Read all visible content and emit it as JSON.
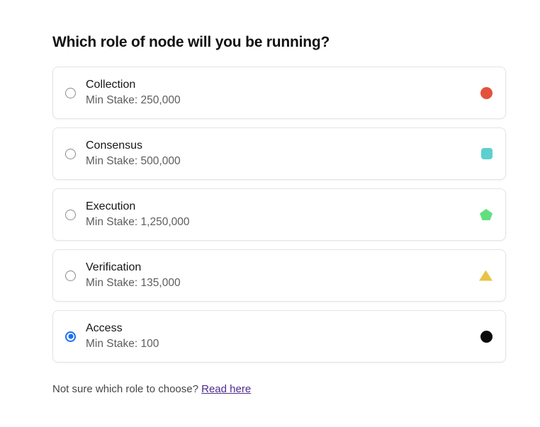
{
  "page": {
    "title": "Which role of node will you be running?"
  },
  "options": [
    {
      "name": "Collection",
      "min_stake_label": "Min Stake: 250,000",
      "icon": "circle",
      "icon_color": "#e4523d",
      "selected": false
    },
    {
      "name": "Consensus",
      "min_stake_label": "Min Stake: 500,000",
      "icon": "rounded-square",
      "icon_color": "#5dcfcf",
      "selected": false
    },
    {
      "name": "Execution",
      "min_stake_label": "Min Stake: 1,250,000",
      "icon": "pentagon",
      "icon_color": "#61df80",
      "selected": false
    },
    {
      "name": "Verification",
      "min_stake_label": "Min Stake: 135,000",
      "icon": "triangle",
      "icon_color": "#e6c545",
      "selected": false
    },
    {
      "name": "Access",
      "min_stake_label": "Min Stake: 100",
      "icon": "circle",
      "icon_color": "#0b0b0b",
      "selected": true
    }
  ],
  "footer": {
    "question": "Not sure which role to choose? ",
    "link_label": "Read here",
    "link_color": "#4f2b8c"
  },
  "colors": {
    "radio_selected": "#1b6ff2",
    "card_border": "#e4e4e7"
  }
}
